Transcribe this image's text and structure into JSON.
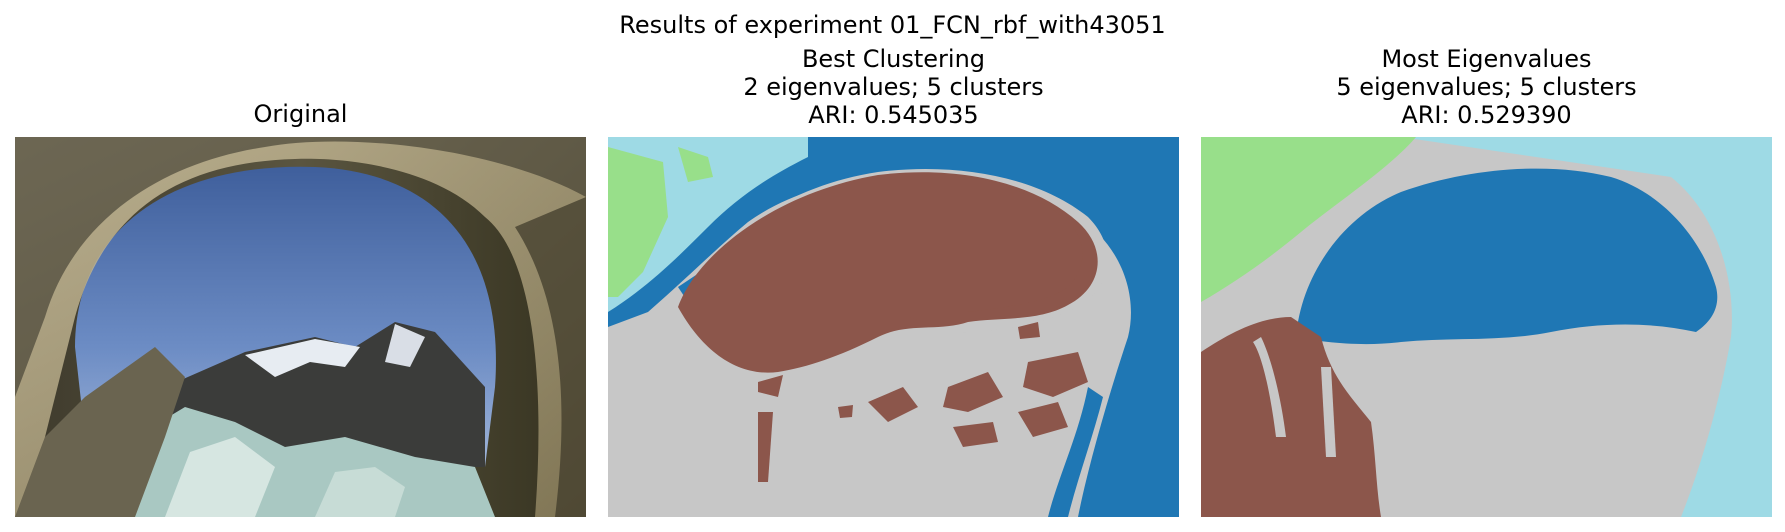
{
  "suptitle": "Results of experiment 01_FCN_rbf_with43051",
  "panels": [
    {
      "title_lines": [
        "Original"
      ],
      "kind": "photo"
    },
    {
      "title_lines": [
        "Best Clustering",
        "2 eigenvalues; 5 clusters",
        "ARI: 0.545035"
      ],
      "kind": "segmentation"
    },
    {
      "title_lines": [
        "Most Eigenvalues",
        "5 eigenvalues; 5 clusters",
        "ARI: 0.529390"
      ],
      "kind": "segmentation"
    }
  ],
  "colors": {
    "cluster_blue": "#1f77b4",
    "cluster_brown": "#8c564b",
    "cluster_gray": "#c7c7c7",
    "cluster_green": "#98df8a",
    "cluster_lightblue": "#9edae5"
  }
}
